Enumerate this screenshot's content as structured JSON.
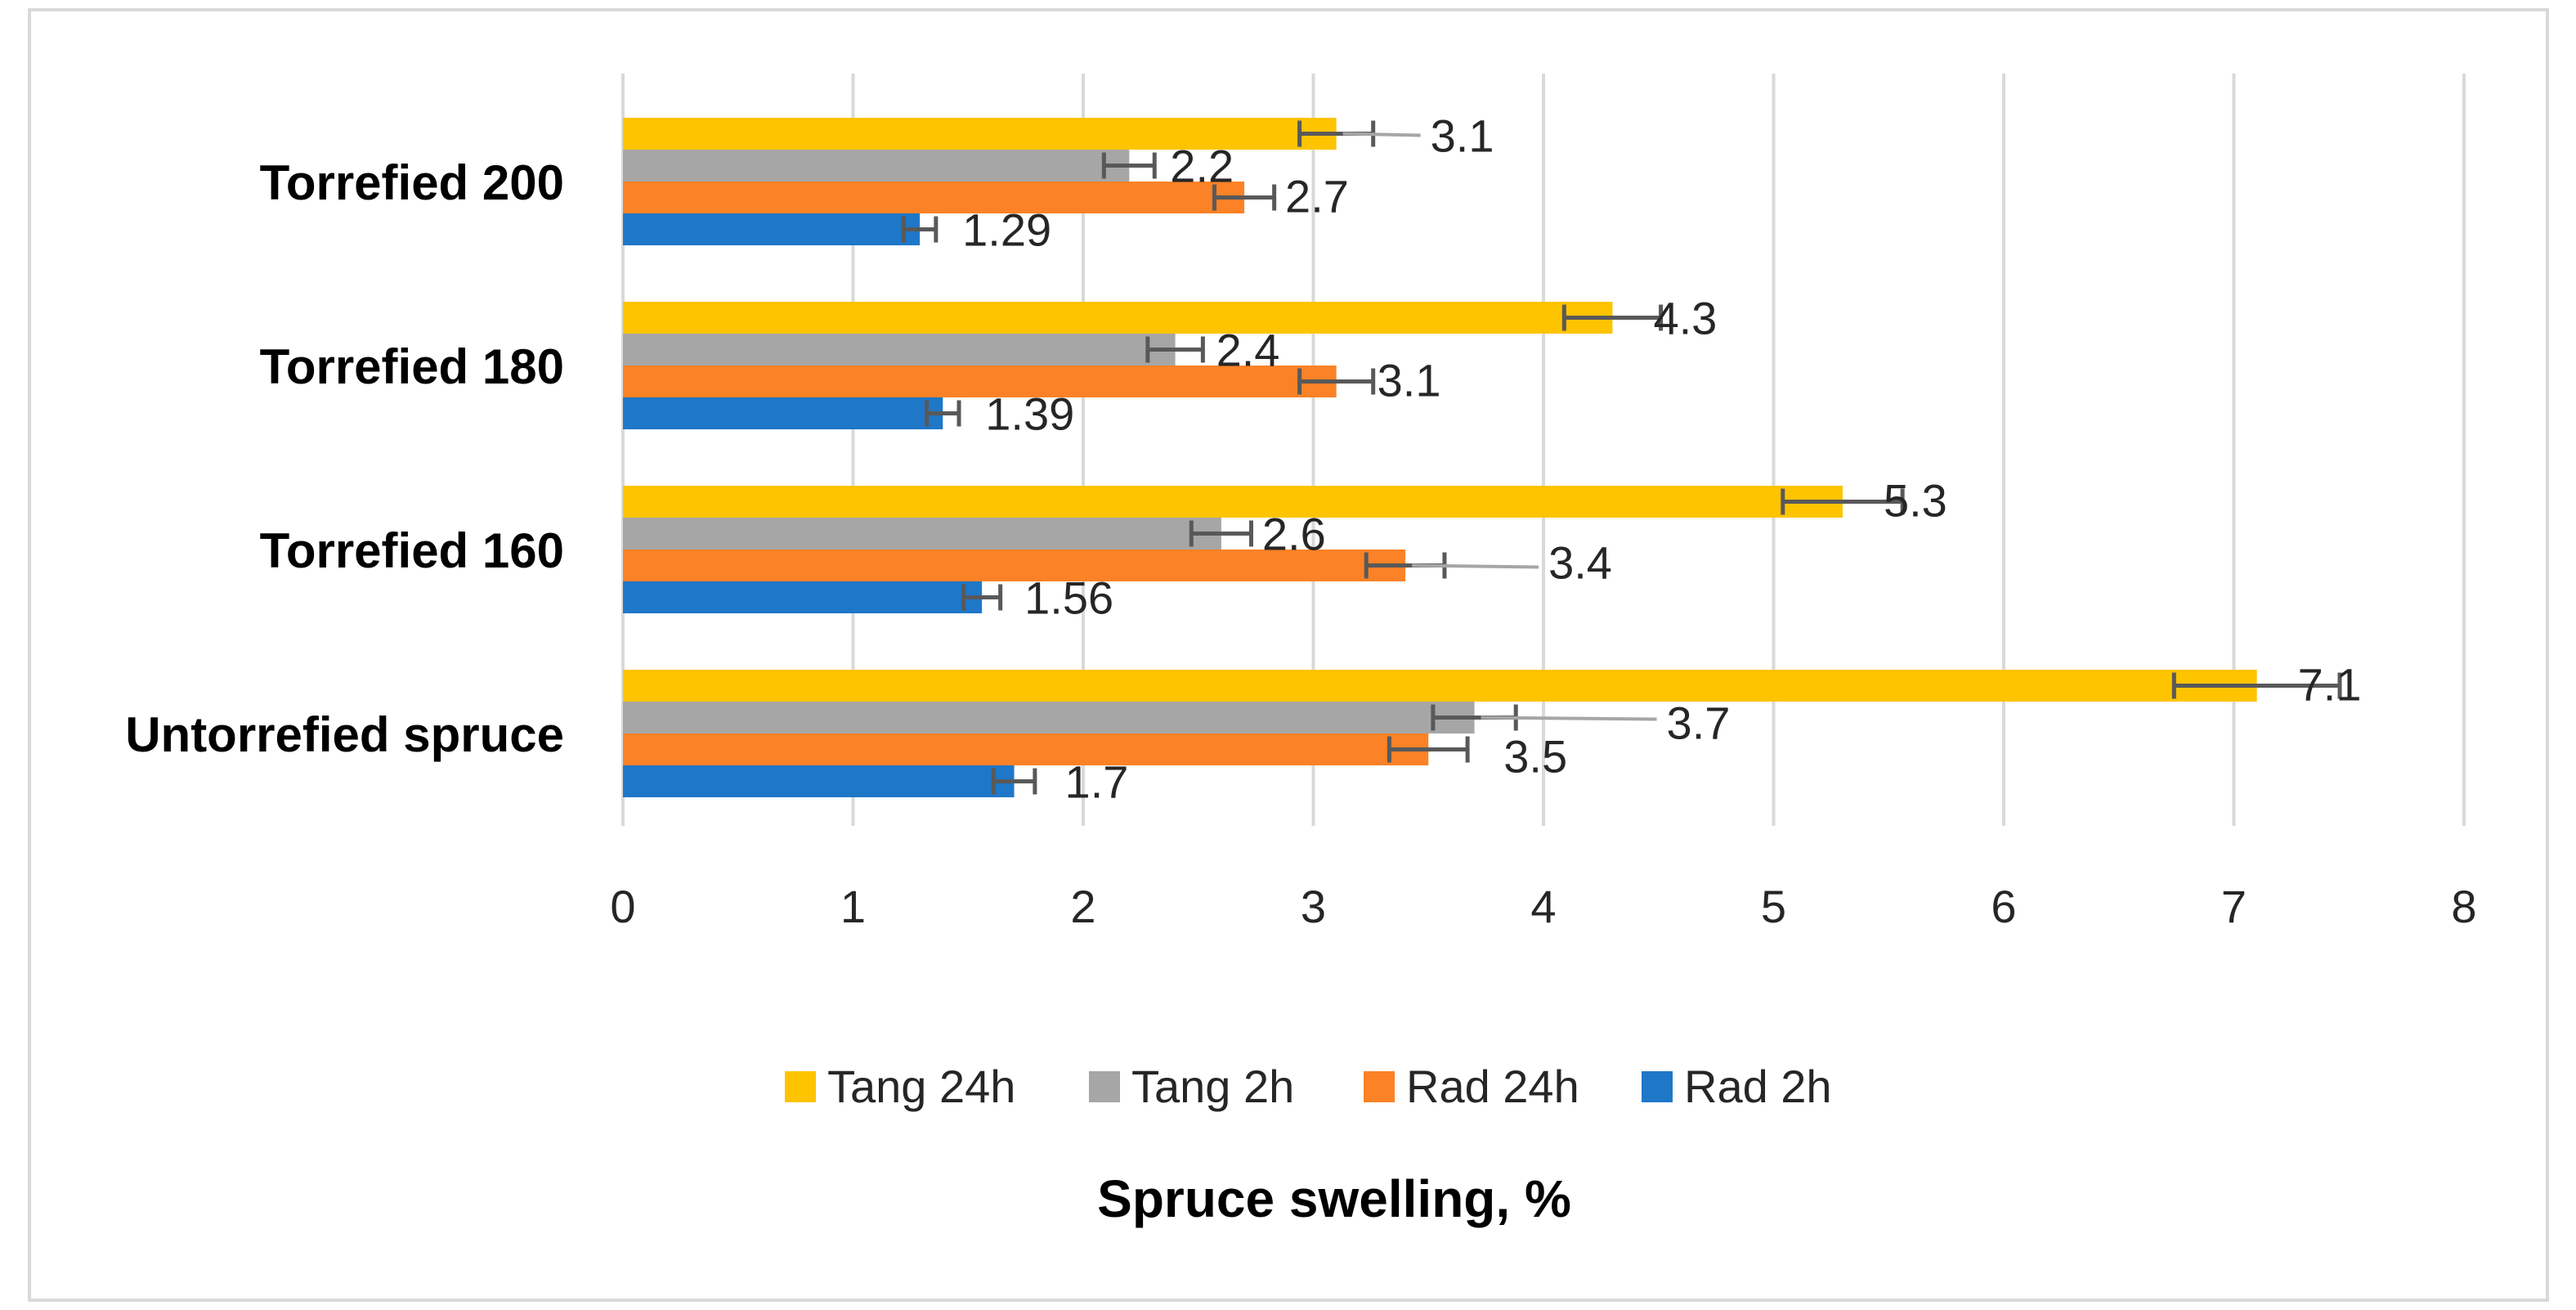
{
  "chart_data": {
    "type": "bar",
    "orientation": "horizontal",
    "title": "",
    "xlabel": "Spruce swelling, %",
    "ylabel": "",
    "xlim": [
      0,
      8
    ],
    "x_ticks": [
      "0",
      "1",
      "2",
      "3",
      "4",
      "5",
      "6",
      "7",
      "8"
    ],
    "grid": true,
    "legend_position": "bottom",
    "categories": [
      "Untorrefied  spruce",
      "Torrefied 160",
      "Torrefied 180",
      "Torrefied 200"
    ],
    "series": [
      {
        "name": "Rad 2h",
        "color": "#1f77c8",
        "values": [
          1.7,
          1.56,
          1.39,
          1.29
        ],
        "labels": [
          "1.7",
          "1.56",
          "1.39",
          "1.29"
        ],
        "errors": [
          0.09,
          0.08,
          0.07,
          0.07
        ]
      },
      {
        "name": "Rad 24h",
        "color": "#fb8226",
        "values": [
          3.5,
          3.4,
          3.1,
          2.7
        ],
        "labels": [
          "3.5",
          "3.4",
          "3.1",
          "2.7"
        ],
        "errors": [
          0.17,
          0.17,
          0.16,
          0.13
        ]
      },
      {
        "name": "Tang 2h",
        "color": "#a6a6a6",
        "values": [
          3.7,
          2.6,
          2.4,
          2.2
        ],
        "labels": [
          "3.7",
          "2.6",
          "2.4",
          "2.2"
        ],
        "errors": [
          0.18,
          0.13,
          0.12,
          0.11
        ]
      },
      {
        "name": "Tang 24h",
        "color": "#fec400",
        "values": [
          7.1,
          5.3,
          4.3,
          3.1
        ],
        "labels": [
          "7.1",
          "5.3",
          "4.3",
          "3.1"
        ],
        "errors": [
          0.36,
          0.26,
          0.21,
          0.16
        ]
      }
    ],
    "legend_order": [
      "Tang 24h",
      "Tang 2h",
      "Rad 24h",
      "Rad 2h"
    ]
  }
}
